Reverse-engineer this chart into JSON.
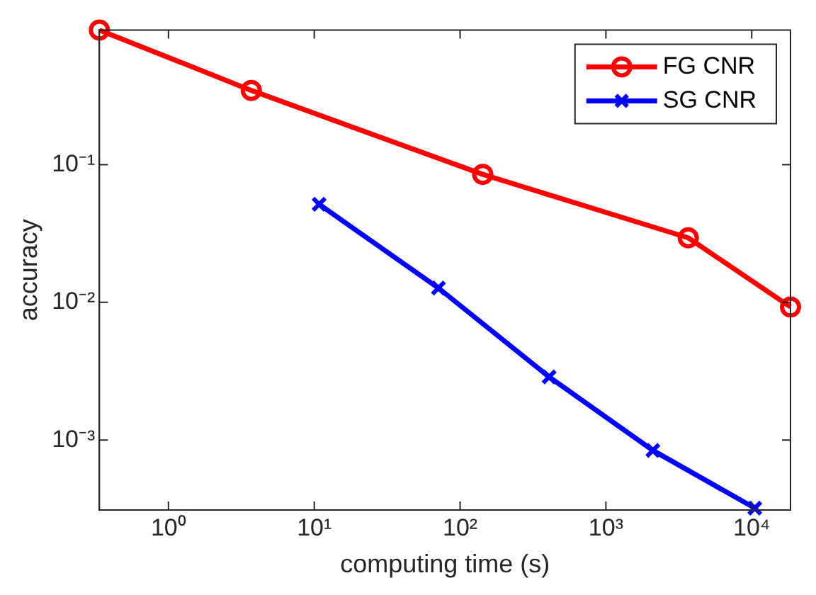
{
  "chart_data": {
    "type": "line",
    "xlabel": "computing time (s)",
    "ylabel": "accuracy",
    "log": "xy",
    "grid": false,
    "legend": "top right",
    "xlim": [
      0.336,
      18450
    ],
    "ylim": [
      0.00031,
      0.95
    ],
    "xticks": [
      {
        "value": 1,
        "label": "10⁰"
      },
      {
        "value": 10,
        "label": "10¹"
      },
      {
        "value": 100,
        "label": "10²"
      },
      {
        "value": 1000,
        "label": "10³"
      },
      {
        "value": 10000,
        "label": "10⁴"
      }
    ],
    "yticks": [
      {
        "value": 0.001,
        "label": "10⁻³"
      },
      {
        "value": 0.01,
        "label": "10⁻²"
      },
      {
        "value": 0.1,
        "label": "10⁻¹"
      }
    ],
    "series": [
      {
        "name": "FG CNR",
        "color": "#ff0000",
        "marker": "circle",
        "x": [
          0.336,
          3.7,
          143,
          3670,
          18450
        ],
        "values": [
          0.95,
          0.346,
          0.085,
          0.0294,
          0.00924
        ]
      },
      {
        "name": "SG CNR",
        "color": "#0000ff",
        "marker": "cross",
        "x": [
          10.8,
          71,
          408,
          2100,
          10500
        ],
        "values": [
          0.0515,
          0.0127,
          0.00287,
          0.00084,
          0.00032
        ]
      }
    ]
  }
}
